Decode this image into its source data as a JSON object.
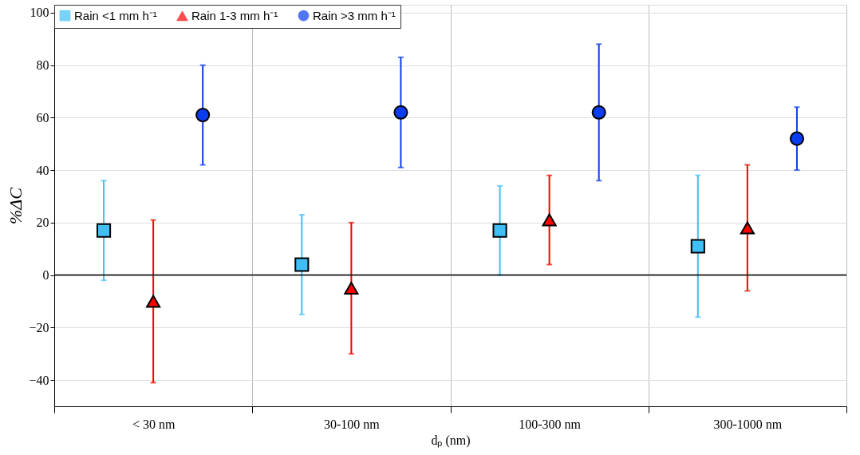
{
  "chart_data": {
    "type": "scatter",
    "xlabel": "dₚ (nm)",
    "ylabel": "%ΔC",
    "categories": [
      "< 30 nm",
      "30-100 nm",
      "100-300 nm",
      "300-1000 nm"
    ],
    "series": [
      {
        "name": "Rain <1 mm h⁻¹",
        "color": "#3fbff5",
        "marker": "square",
        "values": [
          17,
          4,
          17,
          11
        ],
        "errors": [
          [
            -2,
            36
          ],
          [
            -15,
            23
          ],
          [
            0,
            34
          ],
          [
            -16,
            38
          ]
        ]
      },
      {
        "name": "Rain 1-3 mm h⁻¹",
        "color": "#ff0000",
        "marker": "triangle",
        "values": [
          -10,
          -5,
          21,
          18
        ],
        "errors": [
          [
            -41,
            21
          ],
          [
            -30,
            20
          ],
          [
            4,
            38
          ],
          [
            -6,
            42
          ]
        ]
      },
      {
        "name": "Rain >3 mm h⁻¹",
        "color": "#0a3cf0",
        "marker": "circle",
        "values": [
          61,
          62,
          62,
          52
        ],
        "errors": [
          [
            42,
            80
          ],
          [
            41,
            83
          ],
          [
            36,
            88
          ],
          [
            40,
            64
          ]
        ]
      }
    ],
    "ylim": [
      -50,
      103
    ],
    "yticks": [
      -40,
      -20,
      0,
      20,
      40,
      60,
      80,
      100
    ],
    "ref_lines": [
      {
        "axis": "y",
        "value": 0,
        "color": "#000000"
      }
    ],
    "grid": true,
    "legend": "top left"
  }
}
